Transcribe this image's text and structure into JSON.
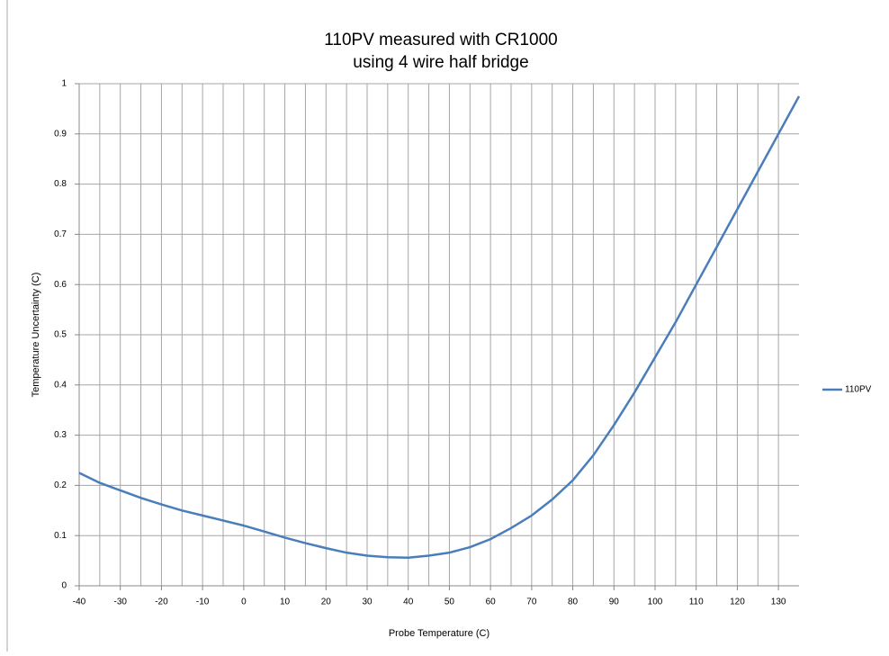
{
  "chart_data": {
    "type": "line",
    "title": [
      "110PV measured with CR1000",
      "using 4 wire half bridge"
    ],
    "x_label": "Probe Temperature  (C)",
    "y_label": "Temperature  Uncertainty  (C)",
    "x": [
      -40,
      -35,
      -30,
      -25,
      -20,
      -15,
      -10,
      -5,
      0,
      5,
      10,
      15,
      20,
      25,
      30,
      35,
      40,
      45,
      50,
      55,
      60,
      65,
      70,
      75,
      80,
      85,
      90,
      95,
      100,
      105,
      110,
      115,
      120,
      125,
      130,
      135
    ],
    "series": [
      {
        "name": "110PV",
        "color": "#4a7ebb",
        "values": [
          0.225,
          0.205,
          0.19,
          0.175,
          0.162,
          0.15,
          0.14,
          0.13,
          0.12,
          0.108,
          0.096,
          0.085,
          0.075,
          0.066,
          0.06,
          0.057,
          0.056,
          0.06,
          0.066,
          0.077,
          0.093,
          0.115,
          0.14,
          0.172,
          0.21,
          0.26,
          0.32,
          0.385,
          0.455,
          0.525,
          0.6,
          0.675,
          0.75,
          0.825,
          0.9,
          0.975
        ]
      }
    ],
    "xlim": [
      -40,
      135
    ],
    "xticks": [
      -40,
      -30,
      -20,
      -10,
      0,
      10,
      20,
      30,
      40,
      50,
      60,
      70,
      80,
      90,
      100,
      110,
      120,
      130
    ],
    "x_minor_grid": [
      -35,
      -25,
      -15,
      -5,
      5,
      15,
      25,
      35,
      45,
      55,
      65,
      75,
      85,
      95,
      105,
      115,
      125
    ],
    "ylim": [
      0,
      1
    ],
    "yticks": [
      0,
      0.1,
      0.2,
      0.3,
      0.4,
      0.5,
      0.6,
      0.7,
      0.8,
      0.9,
      1
    ],
    "grid": true,
    "legend": "right"
  }
}
